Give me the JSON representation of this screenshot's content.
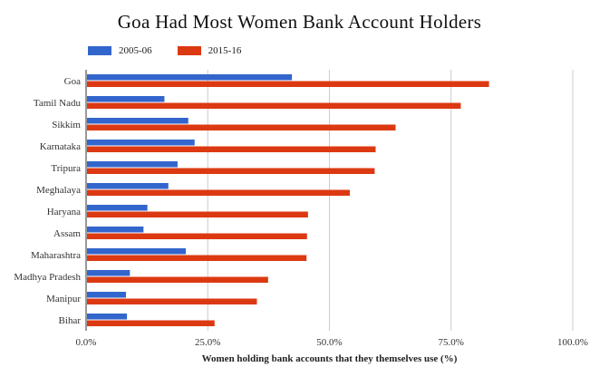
{
  "chart_data": {
    "type": "bar",
    "orientation": "horizontal",
    "title": "Goa Had Most Women Bank Account Holders",
    "xlabel": "Women holding bank accounts that they themselves use (%)",
    "ylabel": "",
    "xlim": [
      0,
      100
    ],
    "x_ticks": [
      0,
      25,
      50,
      75,
      100
    ],
    "x_tick_labels": [
      "0.0%",
      "25.0%",
      "50.0%",
      "75.0%",
      "100.0%"
    ],
    "grid": true,
    "legend_position": "top-left",
    "categories": [
      "Goa",
      "Tamil Nadu",
      "Sikkim",
      "Karnataka",
      "Tripura",
      "Meghalaya",
      "Haryana",
      "Assam",
      "Maharashtra",
      "Madhya Pradesh",
      "Manipur",
      "Bihar"
    ],
    "series": [
      {
        "name": "2005-06",
        "color": "#3366cc",
        "values": [
          42.3,
          16.1,
          21.0,
          22.3,
          18.8,
          16.9,
          12.6,
          11.8,
          20.5,
          9.0,
          8.2,
          8.4
        ]
      },
      {
        "name": "2015-16",
        "color": "#dc3912",
        "values": [
          82.8,
          77.0,
          63.6,
          59.5,
          59.3,
          54.2,
          45.6,
          45.4,
          45.3,
          37.4,
          35.1,
          26.4
        ]
      }
    ]
  }
}
